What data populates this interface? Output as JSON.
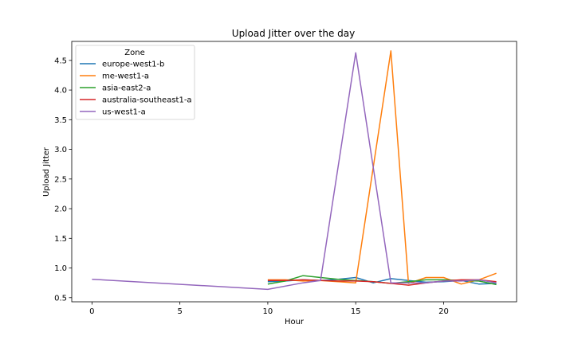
{
  "chart_data": {
    "type": "line",
    "title": "Upload Jitter over the day",
    "xlabel": "Hour",
    "ylabel": "Upload Jitter",
    "xlim": [
      -1.15,
      24.15
    ],
    "ylim": [
      0.43,
      4.82
    ],
    "xticks": [
      0,
      5,
      10,
      15,
      20
    ],
    "yticks": [
      0.5,
      1.0,
      1.5,
      2.0,
      2.5,
      3.0,
      3.5,
      4.0,
      4.5
    ],
    "ytick_labels": [
      "0.5",
      "1.0",
      "1.5",
      "2.0",
      "2.5",
      "3.0",
      "3.5",
      "4.0",
      "4.5"
    ],
    "grid": false,
    "legend": {
      "title": "Zone",
      "location": "upper-left"
    },
    "series": [
      {
        "name": "europe-west1-b",
        "color": "#1f77b4",
        "x": [
          10,
          11,
          12,
          13,
          14,
          15,
          16,
          17,
          18,
          19,
          20,
          21,
          22,
          23
        ],
        "y": [
          0.77,
          0.78,
          0.8,
          0.79,
          0.81,
          0.84,
          0.75,
          0.82,
          0.79,
          0.76,
          0.77,
          0.79,
          0.73,
          0.74
        ]
      },
      {
        "name": "me-west1-a",
        "color": "#ff7f0e",
        "x": [
          10,
          11,
          12,
          13,
          14,
          15,
          16,
          17,
          18,
          19,
          20,
          21,
          22,
          23
        ],
        "y": [
          0.8,
          0.8,
          0.78,
          0.79,
          0.77,
          0.75,
          2.7,
          4.66,
          0.74,
          0.84,
          0.84,
          0.73,
          0.8,
          0.91
        ]
      },
      {
        "name": "asia-east2-a",
        "color": "#2ca02c",
        "x": [
          10,
          11,
          12,
          13,
          14,
          15,
          16,
          17,
          18,
          19,
          20,
          21,
          22,
          23
        ],
        "y": [
          0.73,
          0.78,
          0.87,
          0.84,
          0.81,
          0.79,
          0.77,
          0.74,
          0.77,
          0.8,
          0.8,
          0.79,
          0.78,
          0.72
        ]
      },
      {
        "name": "australia-southeast1-a",
        "color": "#d62728",
        "x": [
          10,
          11,
          12,
          13,
          14,
          15,
          16,
          17,
          18,
          19,
          20,
          21,
          22,
          23
        ],
        "y": [
          0.79,
          0.79,
          0.8,
          0.79,
          0.78,
          0.78,
          0.77,
          0.74,
          0.71,
          0.75,
          0.78,
          0.8,
          0.8,
          0.77
        ]
      },
      {
        "name": "us-west1-a",
        "color": "#9467bd",
        "x": [
          0,
          10,
          12,
          13,
          15,
          17,
          18,
          19,
          20,
          21,
          22,
          23
        ],
        "y": [
          0.81,
          0.64,
          0.75,
          0.79,
          4.63,
          0.75,
          0.75,
          0.75,
          0.78,
          0.78,
          0.8,
          0.75
        ]
      }
    ]
  }
}
